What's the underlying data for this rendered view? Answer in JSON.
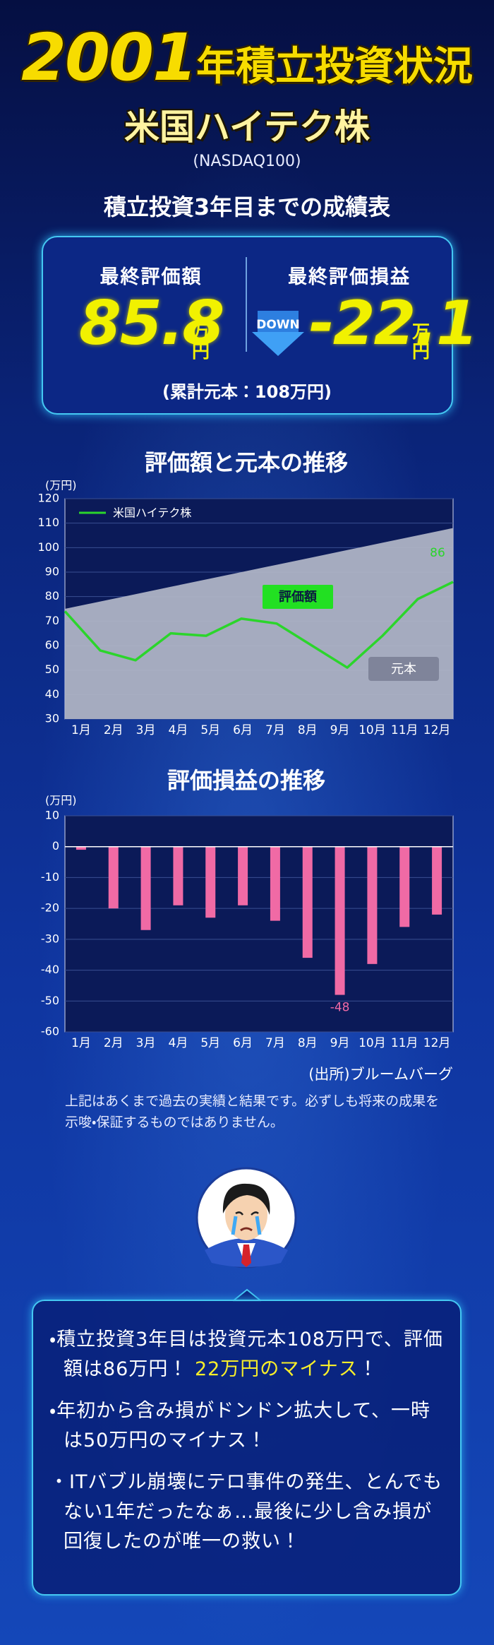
{
  "header": {
    "year": "2001",
    "title": "年積立投資状況",
    "subtitle": "米国ハイテク株",
    "index": "(NASDAQ100)"
  },
  "summary": {
    "heading": "積立投資3年目までの成績表",
    "value_label": "最終評価額",
    "value": "85.8",
    "value_unit": "万円",
    "pl_label": "最終評価損益",
    "pl_badge": "DOWN",
    "pl": "-22.1",
    "pl_unit": "万円",
    "principal_note": "(累計元本：108万円)"
  },
  "chart_data": [
    {
      "type": "line",
      "title": "評価額と元本の推移",
      "y_label": "(万円)",
      "categories": [
        "1月",
        "2月",
        "3月",
        "4月",
        "5月",
        "6月",
        "7月",
        "8月",
        "9月",
        "10月",
        "11月",
        "12月"
      ],
      "series": [
        {
          "name": "米国ハイテク株",
          "color": "#2bd52b",
          "values": [
            74,
            58,
            54,
            65,
            64,
            71,
            69,
            60,
            51,
            64,
            79,
            86
          ],
          "value_labels": [
            null,
            null,
            null,
            null,
            null,
            null,
            null,
            null,
            null,
            null,
            null,
            "86"
          ]
        }
      ],
      "principal": {
        "name": "元本",
        "color": "#b3b7c8",
        "values": [
          75,
          78,
          81,
          84,
          87,
          90,
          93,
          96,
          99,
          102,
          105,
          108
        ]
      },
      "annotation": "評価額",
      "ylim": [
        30,
        120
      ],
      "yticks": [
        30,
        40,
        50,
        60,
        70,
        80,
        90,
        100,
        110,
        120
      ],
      "grid": true
    },
    {
      "type": "bar",
      "title": "評価損益の推移",
      "y_label": "(万円)",
      "categories": [
        "1月",
        "2月",
        "3月",
        "4月",
        "5月",
        "6月",
        "7月",
        "8月",
        "9月",
        "10月",
        "11月",
        "12月"
      ],
      "values": [
        -1,
        -20,
        -27,
        -19,
        -23,
        -19,
        -24,
        -36,
        -48,
        -38,
        -26,
        -22
      ],
      "value_labels": [
        null,
        null,
        null,
        null,
        null,
        null,
        null,
        null,
        "-48",
        null,
        null,
        null
      ],
      "color": "#f06aa5",
      "ylim": [
        -60,
        10
      ],
      "yticks": [
        -60,
        -50,
        -40,
        -30,
        -20,
        -10,
        0,
        10
      ],
      "grid": true
    }
  ],
  "source": "(出所)ブルームバーグ",
  "disclaimer": [
    "上記はあくまで過去の実績と結果です。必ずしも将来の成果を",
    "示唆・保証するものではありません。"
  ],
  "comments": [
    {
      "text": "積立投資3年目は投資元本108万円で、評価額は86万円！ ",
      "highlight": "22万円のマイナス",
      "after": "！"
    },
    {
      "text": "年初から含み損がドンドン拡大して、一時は50万円のマイナス！"
    },
    {
      "text": "ITバブル崩壊にテロ事件の発生、とんでもない1年だったなぁ…最後に少し含み損が回復したのが唯一の救い！"
    }
  ]
}
